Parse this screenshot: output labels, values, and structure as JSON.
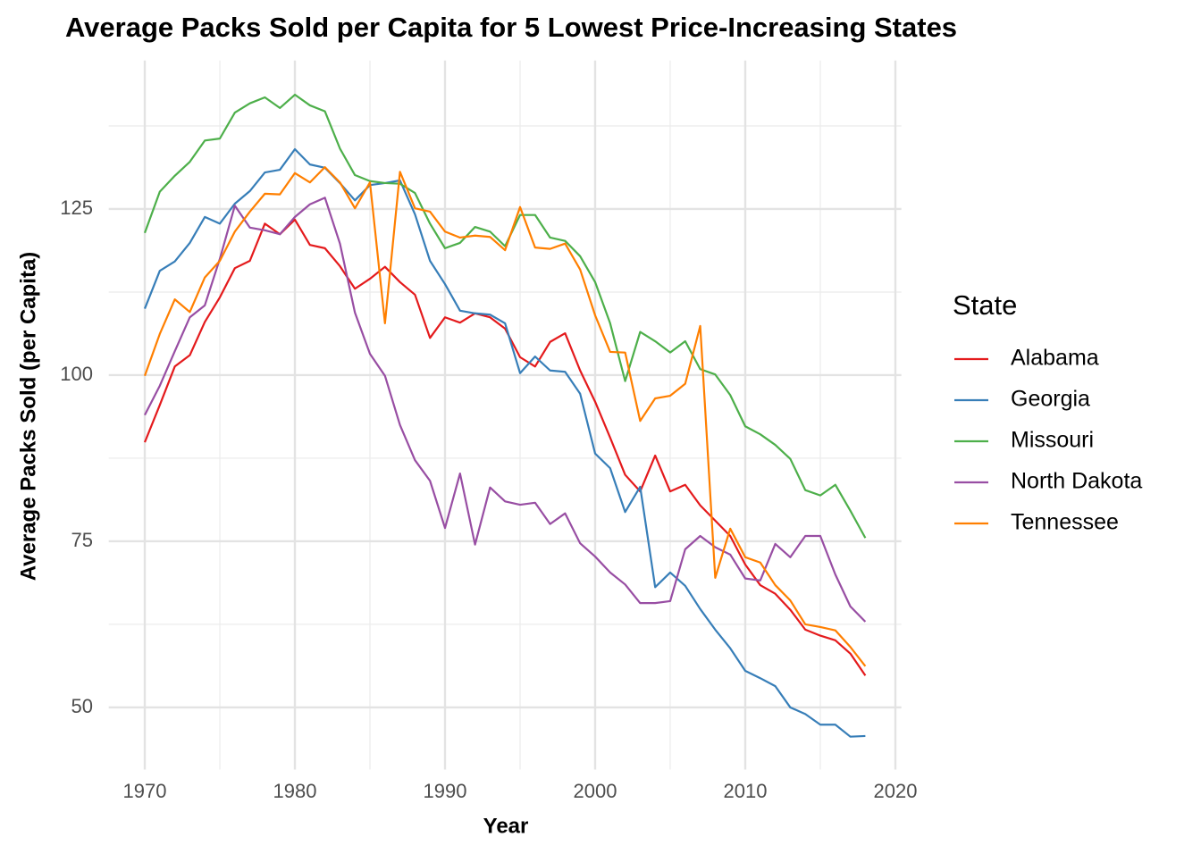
{
  "chart_data": {
    "type": "line",
    "title": "Average Packs Sold per Capita for 5 Lowest Price-Increasing States",
    "xlabel": "Year",
    "ylabel": "Average Packs Sold (per Capita)",
    "legend_title": "State",
    "x": [
      1970,
      1971,
      1972,
      1973,
      1974,
      1975,
      1976,
      1977,
      1978,
      1979,
      1980,
      1981,
      1982,
      1983,
      1984,
      1985,
      1986,
      1987,
      1988,
      1989,
      1990,
      1991,
      1992,
      1993,
      1994,
      1995,
      1996,
      1997,
      1998,
      1999,
      2000,
      2001,
      2002,
      2003,
      2004,
      2005,
      2006,
      2007,
      2008,
      2009,
      2010,
      2011,
      2012,
      2013,
      2014,
      2015,
      2016,
      2017,
      2018
    ],
    "series": [
      {
        "name": "Alabama",
        "color": "#e41a1c",
        "values": [
          89.9,
          95.5,
          101.3,
          103,
          108,
          111.7,
          116.1,
          117.2,
          122.8,
          121.2,
          123.4,
          119.6,
          119.1,
          116.4,
          113,
          114.5,
          116.3,
          114,
          112.1,
          105.6,
          108.7,
          107.9,
          109.3,
          108.7,
          107,
          102.7,
          101.3,
          105,
          106.3,
          100.7,
          96,
          90.6,
          85,
          82.5,
          87.9,
          82.5,
          83.5,
          80.4,
          78.1,
          75.8,
          71.5,
          68.4,
          67.1,
          64.7,
          61.7,
          60.8,
          60.1,
          58.1,
          54.8
        ]
      },
      {
        "name": "Georgia",
        "color": "#377eb8",
        "values": [
          110,
          115.7,
          117.1,
          119.9,
          123.8,
          122.8,
          125.8,
          127.7,
          130.5,
          130.9,
          134,
          131.7,
          131.2,
          128.9,
          126.3,
          128.6,
          128.9,
          129.3,
          124.2,
          117.2,
          113.7,
          109.7,
          109.3,
          109.1,
          107.8,
          100.3,
          102.8,
          100.7,
          100.5,
          97.2,
          88.2,
          86,
          79.4,
          83.2,
          68.1,
          70.3,
          68.3,
          64.8,
          61.7,
          58.9,
          55.5,
          54.4,
          53.2,
          50,
          49,
          47.4,
          47.4,
          45.6,
          45.7
        ]
      },
      {
        "name": "Missouri",
        "color": "#4daf4a",
        "values": [
          121.4,
          127.6,
          130,
          132.1,
          135.3,
          135.6,
          139.5,
          140.9,
          141.8,
          140.2,
          142.2,
          140.6,
          139.7,
          134.1,
          130.1,
          129.2,
          128.9,
          128.8,
          127.4,
          122.8,
          119.1,
          119.9,
          122.3,
          121.6,
          119.4,
          124.1,
          124.1,
          120.7,
          120.2,
          117.9,
          114,
          107.8,
          99.1,
          106.5,
          105.1,
          103.4,
          105.1,
          100.9,
          100.1,
          97,
          92.3,
          91.1,
          89.5,
          87.4,
          82.7,
          81.9,
          83.5,
          79.6,
          75.5
        ]
      },
      {
        "name": "North Dakota",
        "color": "#984ea3",
        "values": [
          94,
          98.4,
          103.6,
          108.7,
          110.5,
          117.5,
          125.5,
          122.2,
          121.8,
          121.2,
          123.8,
          125.7,
          126.7,
          119.8,
          109.4,
          103.2,
          99.9,
          92.5,
          87.2,
          84.1,
          77,
          85.2,
          74.5,
          83.1,
          81,
          80.5,
          80.8,
          77.6,
          79.2,
          74.7,
          72.7,
          70.3,
          68.5,
          65.7,
          65.7,
          66,
          73.8,
          75.8,
          74.1,
          73,
          69.4,
          69.1,
          74.6,
          72.6,
          75.8,
          75.8,
          70,
          65.2,
          62.9
        ]
      },
      {
        "name": "Tennessee",
        "color": "#ff7f00",
        "values": [
          99.9,
          106.2,
          111.4,
          109.5,
          114.7,
          117.2,
          121.6,
          124.6,
          127.3,
          127.2,
          130.4,
          129,
          131.3,
          129,
          125.1,
          129,
          107.8,
          130.6,
          125.1,
          124.6,
          121.6,
          120.7,
          121,
          120.8,
          118.8,
          125.3,
          119.2,
          119,
          119.8,
          115.9,
          109,
          103.5,
          103.4,
          93.1,
          96.5,
          96.9,
          98.7,
          107.4,
          69.5,
          76.9,
          72.6,
          71.8,
          68.4,
          66.1,
          62.5,
          62.1,
          61.6,
          59.1,
          56.2
        ]
      }
    ],
    "xlim": [
      1967.6,
      2020.4
    ],
    "ylim": [
      40.65,
      147.35
    ],
    "xticks": [
      1970,
      1980,
      1990,
      2000,
      2010,
      2020
    ],
    "yticks": [
      50,
      75,
      100,
      125
    ],
    "x_minor_grid": [
      1975,
      1985,
      1995,
      2005,
      2015
    ],
    "y_minor_grid": [
      62.5,
      87.5,
      112.5,
      137.5
    ],
    "grid": true
  }
}
